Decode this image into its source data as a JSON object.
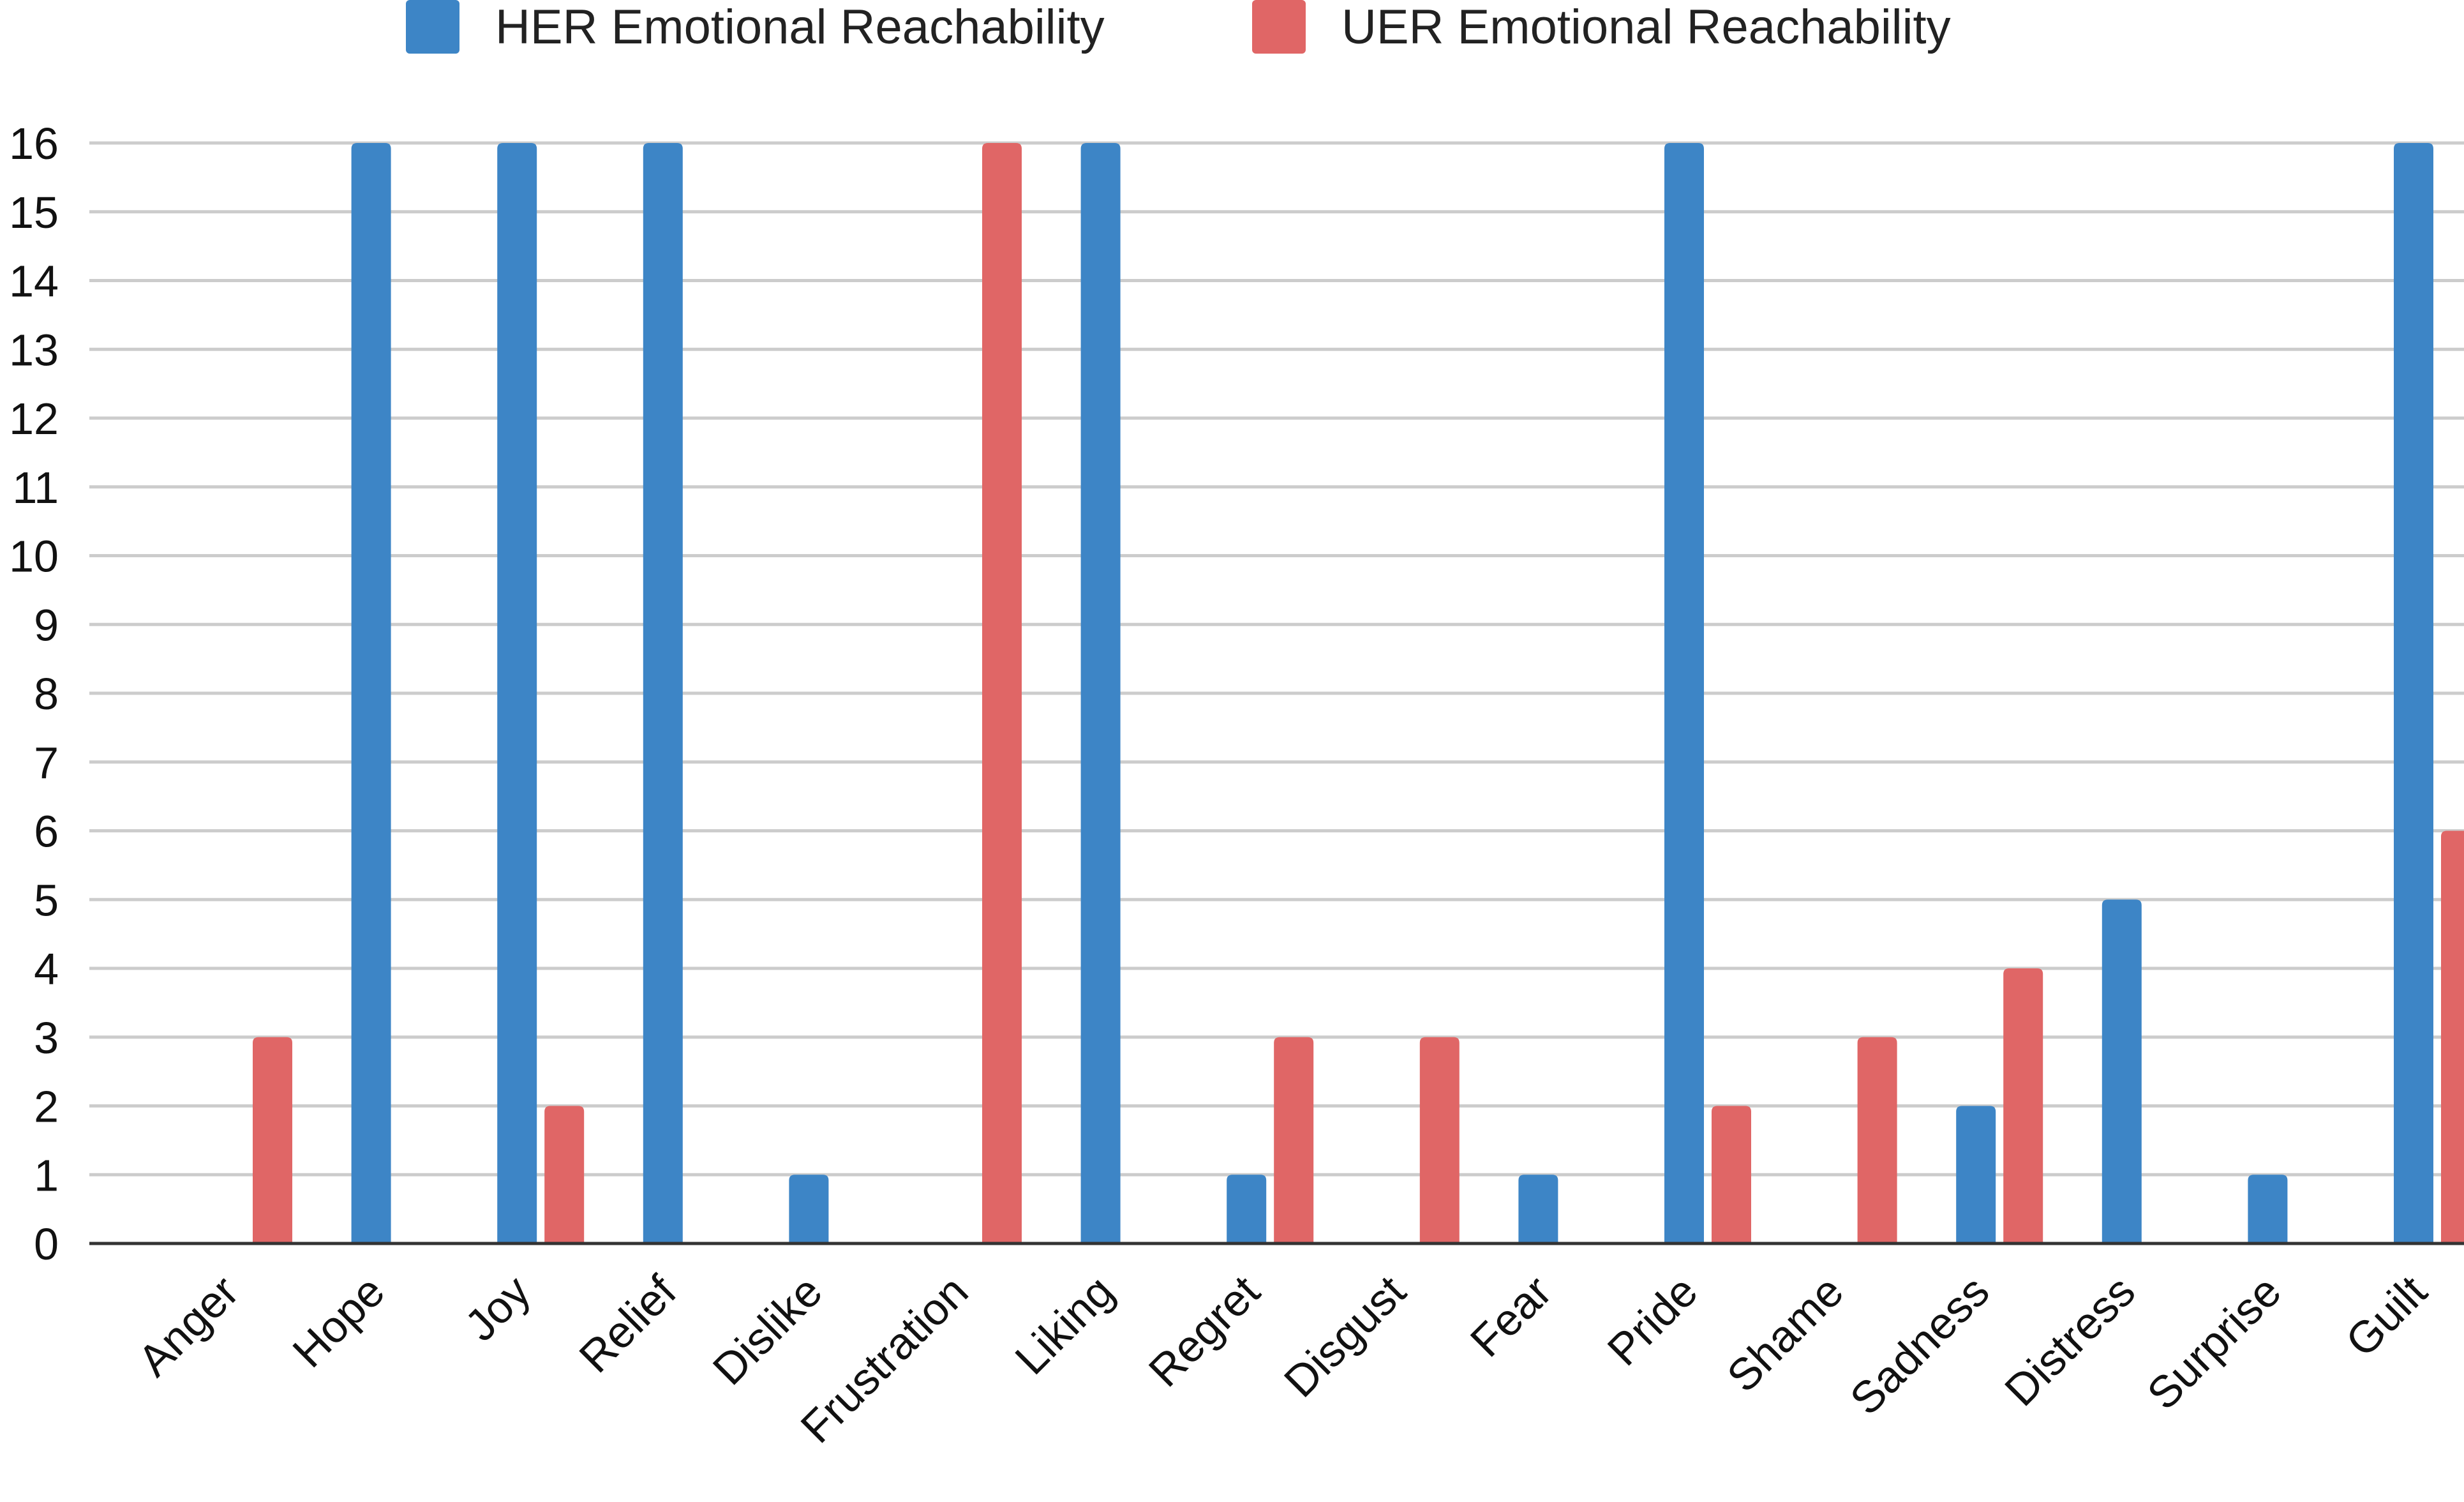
{
  "chart_data": {
    "type": "bar",
    "title": "",
    "xlabel": "",
    "ylabel": "",
    "ylim": [
      0,
      16
    ],
    "yticks": [
      0,
      1,
      2,
      3,
      4,
      5,
      6,
      7,
      8,
      9,
      10,
      11,
      12,
      13,
      14,
      15,
      16
    ],
    "grid": "horizontal",
    "legend_position": "top-center",
    "categories": [
      "Anger",
      "Hope",
      "Joy",
      "Relief",
      "Dislike",
      "Frustration",
      "Liking",
      "Regret",
      "Disgust",
      "Fear",
      "Pride",
      "Shame",
      "Sadness",
      "Distress",
      "Surprise",
      "Guilt"
    ],
    "series": [
      {
        "name": "HER Emotional Reachability",
        "color": "#3d85c6",
        "values": [
          0,
          16,
          16,
          16,
          1,
          0,
          16,
          1,
          0,
          1,
          16,
          0,
          2,
          5,
          1,
          16
        ]
      },
      {
        "name": "UER Emotional Reachability",
        "color": "#e06666",
        "values": [
          3,
          0,
          2,
          0,
          0,
          16,
          0,
          3,
          3,
          0,
          2,
          3,
          4,
          0,
          0,
          6
        ]
      }
    ],
    "colors": {
      "grid": "#cccccc",
      "axis": "#333333",
      "text": "#111111"
    }
  }
}
